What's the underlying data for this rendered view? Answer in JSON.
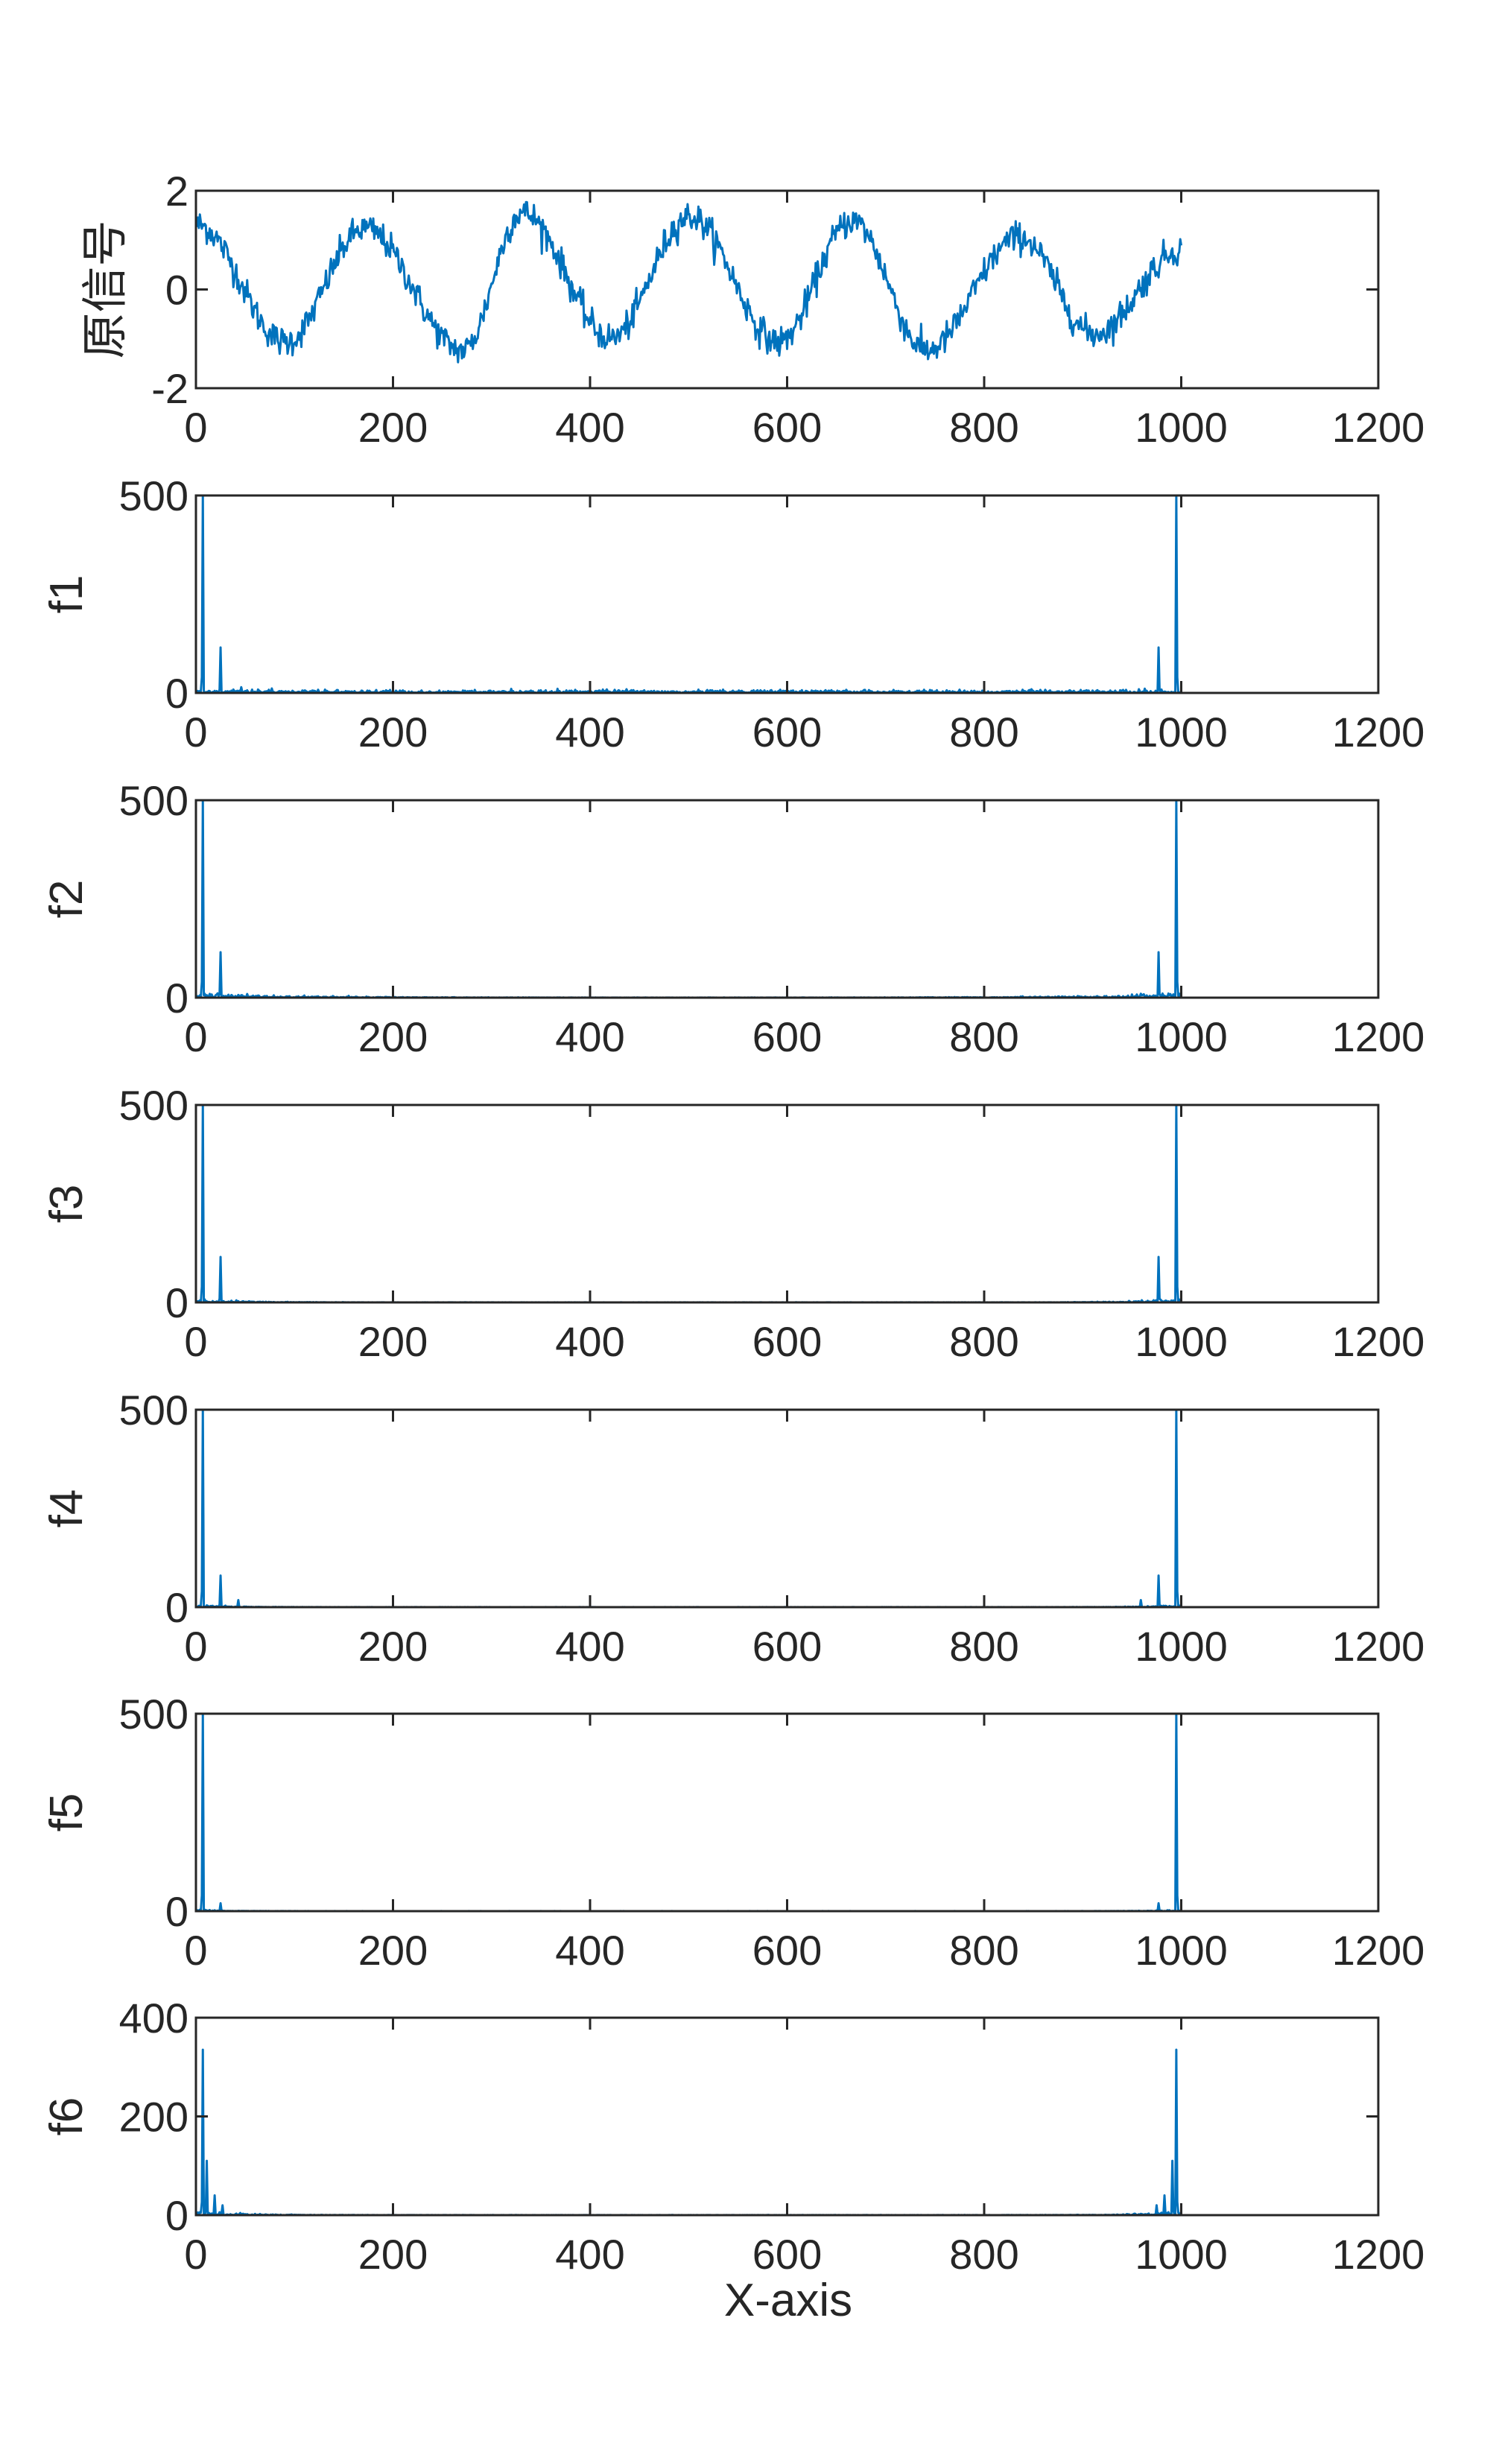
{
  "colors": {
    "line": "#0072BD",
    "axes": "#262626",
    "background": "#ffffff"
  },
  "xlabel": "X-axis",
  "chart_data": [
    {
      "type": "line",
      "ylabel": "原信号",
      "xlim": [
        0,
        1200
      ],
      "ylim": [
        -2,
        2
      ],
      "xticks": [
        "0",
        "200",
        "400",
        "600",
        "800",
        "1000",
        "1200"
      ],
      "yticks": [
        "-2",
        "0",
        "2"
      ],
      "signal": {
        "kind": "noisy_periodic",
        "n": 1000,
        "period": 166.7,
        "amplitude": 1.15,
        "noise": 0.28,
        "peaks": [
          [
            0,
            1.6
          ],
          [
            170,
            1.5
          ],
          [
            330,
            1.9
          ],
          [
            500,
            1.8
          ],
          [
            665,
            1.7
          ],
          [
            835,
            1.3
          ]
        ],
        "troughs": [
          [
            90,
            -1.3
          ],
          [
            270,
            -1.5
          ],
          [
            420,
            -1.2
          ],
          [
            590,
            -1.3
          ],
          [
            740,
            -1.5
          ],
          [
            910,
            -1.1
          ]
        ],
        "end": [
          1000,
          1.0
        ]
      },
      "series": [
        {
          "values_summary": "noisy sinusoid, ~6 cycles over 1000 samples"
        }
      ]
    },
    {
      "type": "line",
      "ylabel": "f1",
      "xlim": [
        0,
        1200
      ],
      "ylim": [
        0,
        500
      ],
      "xticks": [
        "0",
        "200",
        "400",
        "600",
        "800",
        "1000",
        "1200"
      ],
      "yticks": [
        "0",
        "500"
      ],
      "spectrum": {
        "n": 1000,
        "peaks": [
          [
            6,
            500
          ],
          [
            24,
            115
          ]
        ],
        "floor": 6,
        "decay": 0
      }
    },
    {
      "type": "line",
      "ylabel": "f2",
      "xlim": [
        0,
        1200
      ],
      "ylim": [
        0,
        500
      ],
      "xticks": [
        "0",
        "200",
        "400",
        "600",
        "800",
        "1000",
        "1200"
      ],
      "yticks": [
        "0",
        "500"
      ],
      "spectrum": {
        "n": 1000,
        "peaks": [
          [
            6,
            500
          ],
          [
            24,
            115
          ]
        ],
        "floor": 5,
        "decay": 90
      }
    },
    {
      "type": "line",
      "ylabel": "f3",
      "xlim": [
        0,
        1200
      ],
      "ylim": [
        0,
        500
      ],
      "xticks": [
        "0",
        "200",
        "400",
        "600",
        "800",
        "1000",
        "1200"
      ],
      "yticks": [
        "0",
        "500"
      ],
      "spectrum": {
        "n": 1000,
        "peaks": [
          [
            6,
            500
          ],
          [
            24,
            115
          ]
        ],
        "floor": 4,
        "decay": 40
      }
    },
    {
      "type": "line",
      "ylabel": "f4",
      "xlim": [
        0,
        1200
      ],
      "ylim": [
        0,
        500
      ],
      "xticks": [
        "0",
        "200",
        "400",
        "600",
        "800",
        "1000",
        "1200"
      ],
      "yticks": [
        "0",
        "500"
      ],
      "spectrum": {
        "n": 1000,
        "peaks": [
          [
            6,
            500
          ],
          [
            24,
            80
          ],
          [
            42,
            18
          ]
        ],
        "floor": 3,
        "decay": 30
      }
    },
    {
      "type": "line",
      "ylabel": "f5",
      "xlim": [
        0,
        1200
      ],
      "ylim": [
        0,
        500
      ],
      "xticks": [
        "0",
        "200",
        "400",
        "600",
        "800",
        "1000",
        "1200"
      ],
      "yticks": [
        "0",
        "500"
      ],
      "spectrum": {
        "n": 1000,
        "peaks": [
          [
            6,
            500
          ],
          [
            24,
            20
          ]
        ],
        "floor": 2,
        "decay": 25
      }
    },
    {
      "type": "line",
      "ylabel": "f6",
      "xlim": [
        0,
        1200
      ],
      "ylim": [
        0,
        400
      ],
      "xticks": [
        "0",
        "200",
        "400",
        "600",
        "800",
        "1000",
        "1200"
      ],
      "yticks": [
        "0",
        "200",
        "400"
      ],
      "spectrum": {
        "n": 1000,
        "peaks": [
          [
            6,
            335
          ],
          [
            10,
            110
          ],
          [
            18,
            40
          ],
          [
            26,
            20
          ]
        ],
        "floor": 4,
        "decay": 35
      }
    }
  ]
}
